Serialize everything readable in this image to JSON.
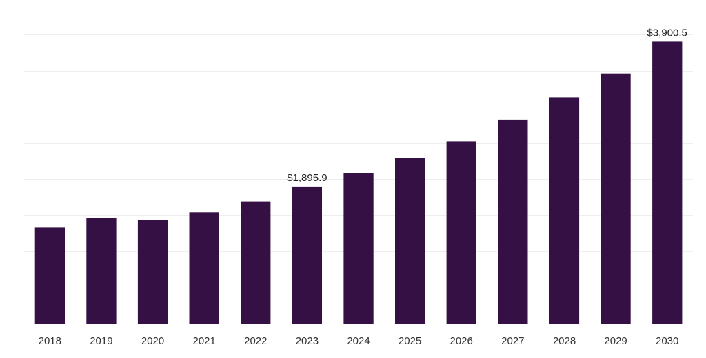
{
  "chart_data": {
    "type": "bar",
    "title": "",
    "xlabel": "",
    "ylabel": "",
    "categories": [
      "2018",
      "2019",
      "2020",
      "2021",
      "2022",
      "2023",
      "2024",
      "2025",
      "2026",
      "2027",
      "2028",
      "2029",
      "2030"
    ],
    "values": [
      1330,
      1460,
      1430,
      1540,
      1690,
      1895.9,
      2080,
      2290,
      2520,
      2820,
      3130,
      3460,
      3900.5
    ],
    "data_labels": [
      {
        "index": 5,
        "text": "$1,895.9"
      },
      {
        "index": 12,
        "text": "$3,900.5"
      }
    ],
    "ylim": [
      0,
      4000
    ],
    "y_gridline_step": 500,
    "grid": true,
    "legend": "none",
    "colors": {
      "bar": "#351045",
      "grid": "#eeeeee",
      "axis": "#555555"
    }
  }
}
